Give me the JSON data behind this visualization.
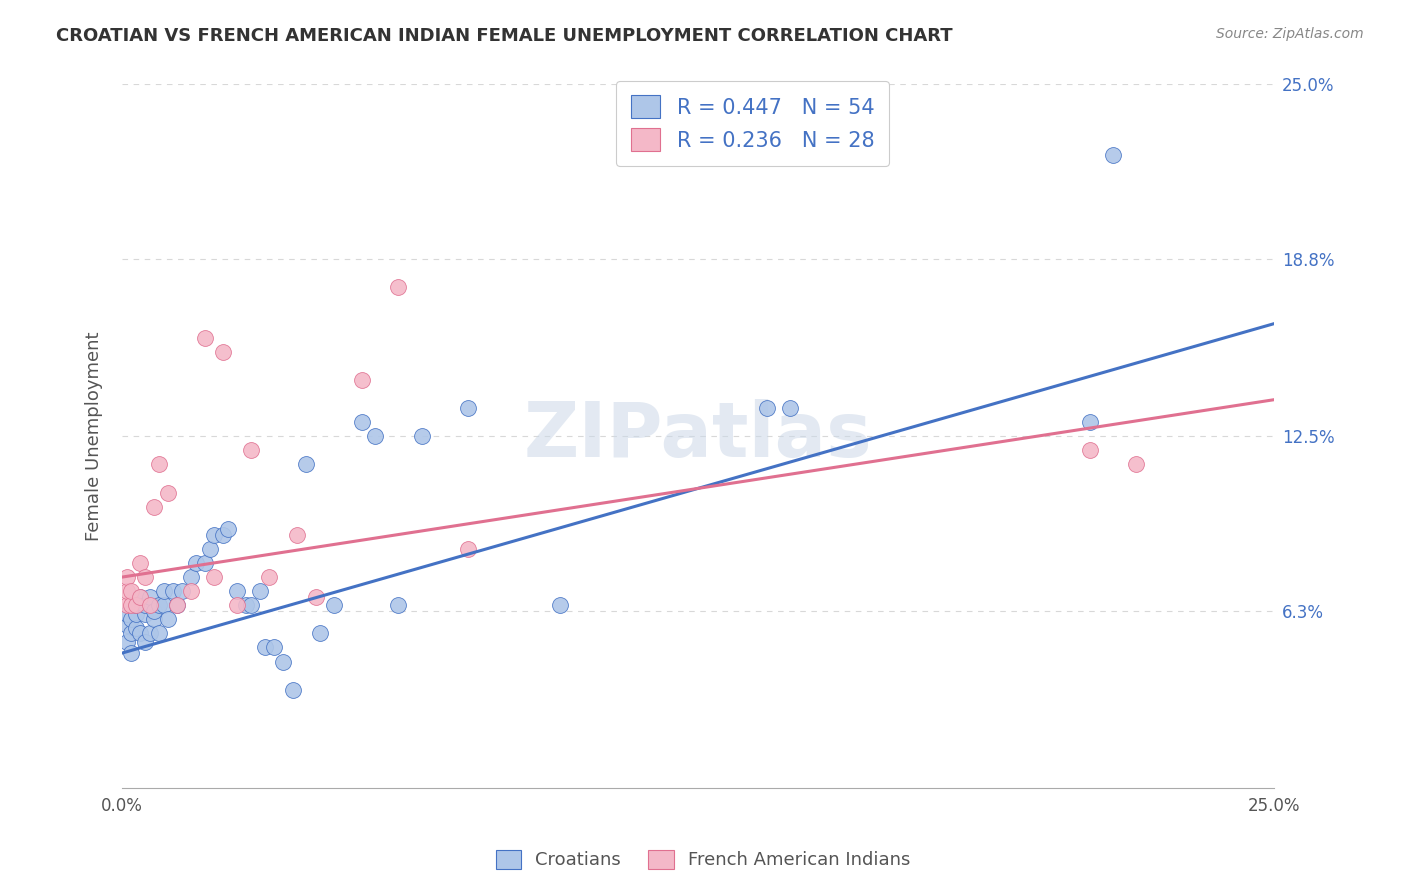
{
  "title": "CROATIAN VS FRENCH AMERICAN INDIAN FEMALE UNEMPLOYMENT CORRELATION CHART",
  "source": "Source: ZipAtlas.com",
  "ylabel": "Female Unemployment",
  "xlim": [
    0.0,
    0.25
  ],
  "ylim": [
    0.0,
    0.25
  ],
  "ytick_labels": [
    "6.3%",
    "12.5%",
    "18.8%",
    "25.0%"
  ],
  "ytick_values": [
    0.063,
    0.125,
    0.188,
    0.25
  ],
  "croatian_color": "#aec6e8",
  "french_ai_color": "#f4b8c8",
  "trend_blue": "#4472c4",
  "trend_pink": "#e07090",
  "watermark": "ZIPatlas",
  "background_color": "#ffffff",
  "grid_color": "#d8d8d8",
  "blue_line_x0": 0.0,
  "blue_line_y0": 0.048,
  "blue_line_x1": 0.25,
  "blue_line_y1": 0.165,
  "pink_line_x0": 0.0,
  "pink_line_y0": 0.075,
  "pink_line_x1": 0.25,
  "pink_line_y1": 0.138,
  "croatian_x": [
    0.001,
    0.001,
    0.001,
    0.002,
    0.002,
    0.002,
    0.003,
    0.003,
    0.003,
    0.004,
    0.004,
    0.005,
    0.005,
    0.005,
    0.006,
    0.006,
    0.007,
    0.007,
    0.008,
    0.008,
    0.009,
    0.009,
    0.01,
    0.011,
    0.012,
    0.013,
    0.015,
    0.016,
    0.018,
    0.019,
    0.02,
    0.022,
    0.023,
    0.025,
    0.027,
    0.028,
    0.03,
    0.031,
    0.033,
    0.035,
    0.037,
    0.04,
    0.043,
    0.046,
    0.052,
    0.055,
    0.06,
    0.065,
    0.075,
    0.095,
    0.14,
    0.145,
    0.21,
    0.215
  ],
  "croatian_y": [
    0.052,
    0.058,
    0.062,
    0.048,
    0.055,
    0.06,
    0.057,
    0.062,
    0.065,
    0.055,
    0.068,
    0.052,
    0.062,
    0.065,
    0.055,
    0.068,
    0.06,
    0.063,
    0.065,
    0.055,
    0.065,
    0.07,
    0.06,
    0.07,
    0.065,
    0.07,
    0.075,
    0.08,
    0.08,
    0.085,
    0.09,
    0.09,
    0.092,
    0.07,
    0.065,
    0.065,
    0.07,
    0.05,
    0.05,
    0.045,
    0.035,
    0.115,
    0.055,
    0.065,
    0.13,
    0.125,
    0.065,
    0.125,
    0.135,
    0.065,
    0.135,
    0.135,
    0.13,
    0.225
  ],
  "french_ai_x": [
    0.001,
    0.001,
    0.001,
    0.002,
    0.002,
    0.003,
    0.004,
    0.004,
    0.005,
    0.006,
    0.007,
    0.008,
    0.01,
    0.012,
    0.015,
    0.018,
    0.02,
    0.022,
    0.025,
    0.028,
    0.032,
    0.038,
    0.042,
    0.052,
    0.06,
    0.075,
    0.21,
    0.22
  ],
  "french_ai_y": [
    0.065,
    0.07,
    0.075,
    0.065,
    0.07,
    0.065,
    0.068,
    0.08,
    0.075,
    0.065,
    0.1,
    0.115,
    0.105,
    0.065,
    0.07,
    0.16,
    0.075,
    0.155,
    0.065,
    0.12,
    0.075,
    0.09,
    0.068,
    0.145,
    0.178,
    0.085,
    0.12,
    0.115
  ]
}
